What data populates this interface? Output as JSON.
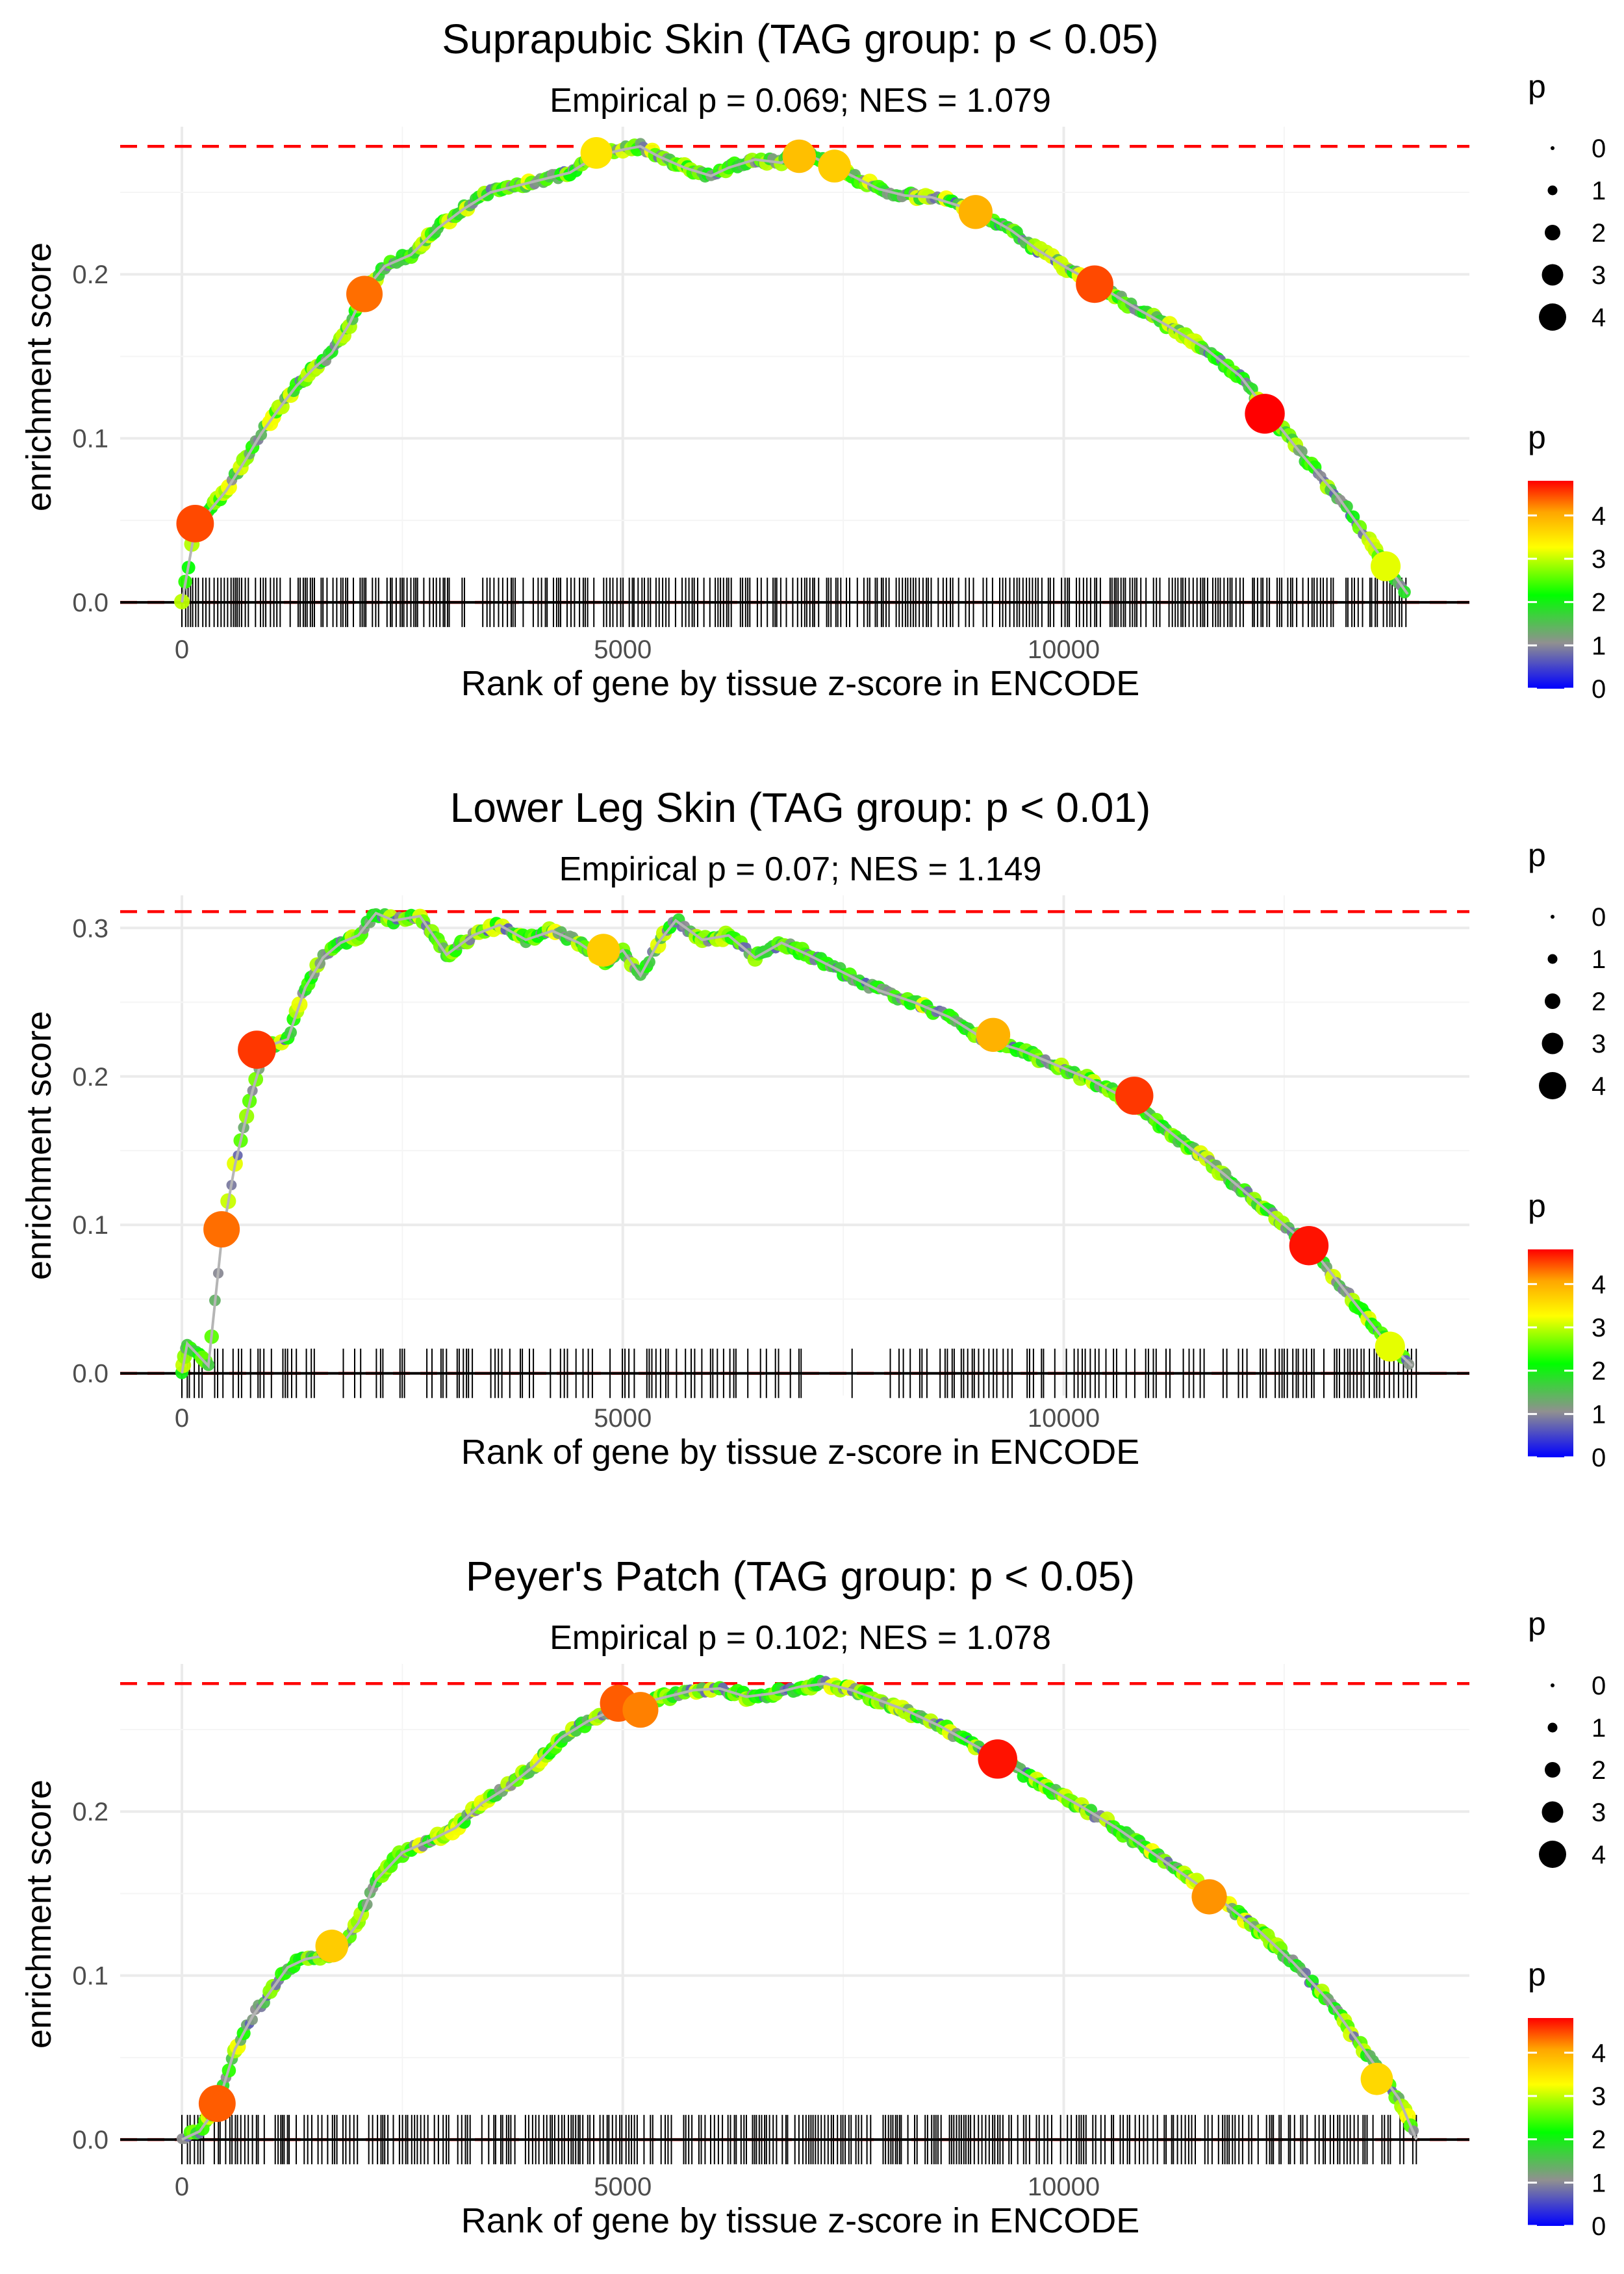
{
  "chart_data": [
    {
      "type": "line",
      "title": "Suprapubic Skin (TAG group: p < 0.05)",
      "subtitle": "Empirical p = 0.069; NES = 1.079",
      "xlabel": "Rank of gene by tissue z-score in ENCODE",
      "ylabel": "enrichment score",
      "xlim": [
        -700,
        14600
      ],
      "ylim": [
        -0.015,
        0.29
      ],
      "xticks": [
        0,
        5000,
        10000
      ],
      "xtick_labels": [
        "0",
        "5000",
        "10000"
      ],
      "yticks": [
        0.0,
        0.1,
        0.2
      ],
      "ytick_labels": [
        "0.0",
        "0.1",
        "0.2"
      ],
      "max_es": 0.278,
      "rug_density": "dense",
      "x": [
        0,
        150,
        300,
        500,
        700,
        900,
        1100,
        1300,
        1500,
        1700,
        1900,
        2100,
        2300,
        2600,
        2900,
        3200,
        3500,
        3800,
        4100,
        4400,
        4700,
        5000,
        5200,
        5400,
        5700,
        6000,
        6200,
        6500,
        6800,
        7000,
        7300,
        7600,
        7900,
        8200,
        8500,
        8800,
        9100,
        9400,
        9700,
        10000,
        10400,
        10800,
        11200,
        11600,
        12000,
        12300,
        12700,
        13100,
        13500,
        13900
      ],
      "values": [
        0.0,
        0.045,
        0.055,
        0.068,
        0.085,
        0.103,
        0.118,
        0.132,
        0.143,
        0.152,
        0.17,
        0.192,
        0.205,
        0.212,
        0.228,
        0.24,
        0.25,
        0.254,
        0.258,
        0.262,
        0.272,
        0.276,
        0.278,
        0.272,
        0.265,
        0.26,
        0.265,
        0.27,
        0.268,
        0.275,
        0.268,
        0.26,
        0.252,
        0.248,
        0.247,
        0.242,
        0.236,
        0.227,
        0.215,
        0.205,
        0.193,
        0.18,
        0.168,
        0.155,
        0.138,
        0.117,
        0.09,
        0.065,
        0.035,
        0.005
      ],
      "highlights": [
        {
          "x": 150,
          "y": 0.048,
          "p": 4.2
        },
        {
          "x": 2070,
          "y": 0.188,
          "p": 4.0
        },
        {
          "x": 4700,
          "y": 0.274,
          "p": 3.2
        },
        {
          "x": 7000,
          "y": 0.272,
          "p": 3.5
        },
        {
          "x": 7400,
          "y": 0.266,
          "p": 3.4
        },
        {
          "x": 9000,
          "y": 0.238,
          "p": 3.6
        },
        {
          "x": 10350,
          "y": 0.194,
          "p": 4.2
        },
        {
          "x": 12280,
          "y": 0.115,
          "p": 4.6
        },
        {
          "x": 13650,
          "y": 0.022,
          "p": 2.9
        }
      ]
    },
    {
      "type": "line",
      "title": "Lower Leg Skin (TAG group: p < 0.01)",
      "subtitle": "Empirical p = 0.07; NES = 1.149",
      "xlabel": "Rank of gene by tissue z-score in ENCODE",
      "ylabel": "enrichment score",
      "xlim": [
        -700,
        14600
      ],
      "ylim": [
        -0.015,
        0.322
      ],
      "xticks": [
        0,
        5000,
        10000
      ],
      "xtick_labels": [
        "0",
        "5000",
        "10000"
      ],
      "yticks": [
        0.0,
        0.1,
        0.2,
        0.3
      ],
      "ytick_labels": [
        "0.0",
        "0.1",
        "0.2",
        "0.3"
      ],
      "max_es": 0.311,
      "rug_density": "sparse",
      "x": [
        0,
        60,
        300,
        450,
        600,
        800,
        950,
        1200,
        1400,
        1600,
        1800,
        2000,
        2200,
        2400,
        2700,
        3000,
        3300,
        3600,
        3900,
        4200,
        4500,
        4800,
        5000,
        5200,
        5400,
        5600,
        5900,
        6200,
        6500,
        6800,
        7100,
        7500,
        7900,
        8300,
        8700,
        9100,
        9500,
        9900,
        10300,
        10800,
        11300,
        11800,
        12300,
        12800,
        13200,
        13600,
        13950
      ],
      "values": [
        0.0,
        0.02,
        0.005,
        0.09,
        0.14,
        0.19,
        0.22,
        0.225,
        0.26,
        0.28,
        0.29,
        0.295,
        0.31,
        0.305,
        0.308,
        0.282,
        0.295,
        0.302,
        0.292,
        0.298,
        0.29,
        0.278,
        0.285,
        0.268,
        0.29,
        0.305,
        0.292,
        0.295,
        0.28,
        0.29,
        0.282,
        0.27,
        0.258,
        0.25,
        0.24,
        0.225,
        0.218,
        0.208,
        0.198,
        0.182,
        0.158,
        0.135,
        0.11,
        0.085,
        0.055,
        0.025,
        0.005
      ],
      "highlights": [
        {
          "x": 450,
          "y": 0.097,
          "p": 4.0
        },
        {
          "x": 850,
          "y": 0.218,
          "p": 4.3
        },
        {
          "x": 4780,
          "y": 0.285,
          "p": 3.4
        },
        {
          "x": 9200,
          "y": 0.228,
          "p": 3.6
        },
        {
          "x": 10800,
          "y": 0.187,
          "p": 4.3
        },
        {
          "x": 12780,
          "y": 0.086,
          "p": 4.5
        },
        {
          "x": 13700,
          "y": 0.018,
          "p": 2.9
        }
      ]
    },
    {
      "type": "line",
      "title": "Peyer's Patch (TAG group: p < 0.05)",
      "subtitle": "Empirical p = 0.102; NES = 1.078",
      "xlabel": "Rank of gene by tissue z-score in ENCODE",
      "ylabel": "enrichment score",
      "xlim": [
        -700,
        14600
      ],
      "ylim": [
        -0.015,
        0.29
      ],
      "xticks": [
        0,
        5000,
        10000
      ],
      "xtick_labels": [
        "0",
        "5000",
        "10000"
      ],
      "yticks": [
        0.0,
        0.1,
        0.2
      ],
      "ytick_labels": [
        "0.0",
        "0.1",
        "0.2"
      ],
      "max_es": 0.278,
      "rug_density": "dense",
      "x": [
        0,
        200,
        400,
        600,
        800,
        1000,
        1200,
        1400,
        1600,
        1800,
        2000,
        2200,
        2500,
        2800,
        3100,
        3400,
        3700,
        4000,
        4300,
        4600,
        4900,
        5200,
        5500,
        5800,
        6100,
        6400,
        6700,
        7000,
        7300,
        7600,
        7900,
        8200,
        8600,
        9000,
        9400,
        9800,
        10200,
        10600,
        11000,
        11400,
        11800,
        12200,
        12600,
        13000,
        13400,
        13800,
        14000
      ],
      "values": [
        0.0,
        0.005,
        0.02,
        0.055,
        0.075,
        0.09,
        0.105,
        0.11,
        0.112,
        0.118,
        0.132,
        0.158,
        0.175,
        0.182,
        0.19,
        0.205,
        0.215,
        0.228,
        0.245,
        0.255,
        0.262,
        0.266,
        0.27,
        0.274,
        0.275,
        0.27,
        0.272,
        0.276,
        0.278,
        0.274,
        0.268,
        0.262,
        0.252,
        0.24,
        0.228,
        0.215,
        0.203,
        0.19,
        0.175,
        0.16,
        0.145,
        0.128,
        0.108,
        0.085,
        0.055,
        0.025,
        0.0
      ],
      "highlights": [
        {
          "x": 400,
          "y": 0.022,
          "p": 4.1
        },
        {
          "x": 1700,
          "y": 0.118,
          "p": 3.4
        },
        {
          "x": 4950,
          "y": 0.266,
          "p": 4.1
        },
        {
          "x": 5200,
          "y": 0.262,
          "p": 3.9
        },
        {
          "x": 9250,
          "y": 0.232,
          "p": 4.5
        },
        {
          "x": 11650,
          "y": 0.148,
          "p": 3.8
        },
        {
          "x": 13550,
          "y": 0.037,
          "p": 3.3
        }
      ]
    }
  ],
  "legend": {
    "size_title": "p",
    "size_labels": [
      "0",
      "1",
      "2",
      "3",
      "4"
    ],
    "color_title": "p",
    "color_labels": [
      "0",
      "1",
      "2",
      "3",
      "4"
    ],
    "colors": [
      "#0000ff",
      "#909090",
      "#00ff00",
      "#ffff00",
      "#ff0000"
    ]
  }
}
